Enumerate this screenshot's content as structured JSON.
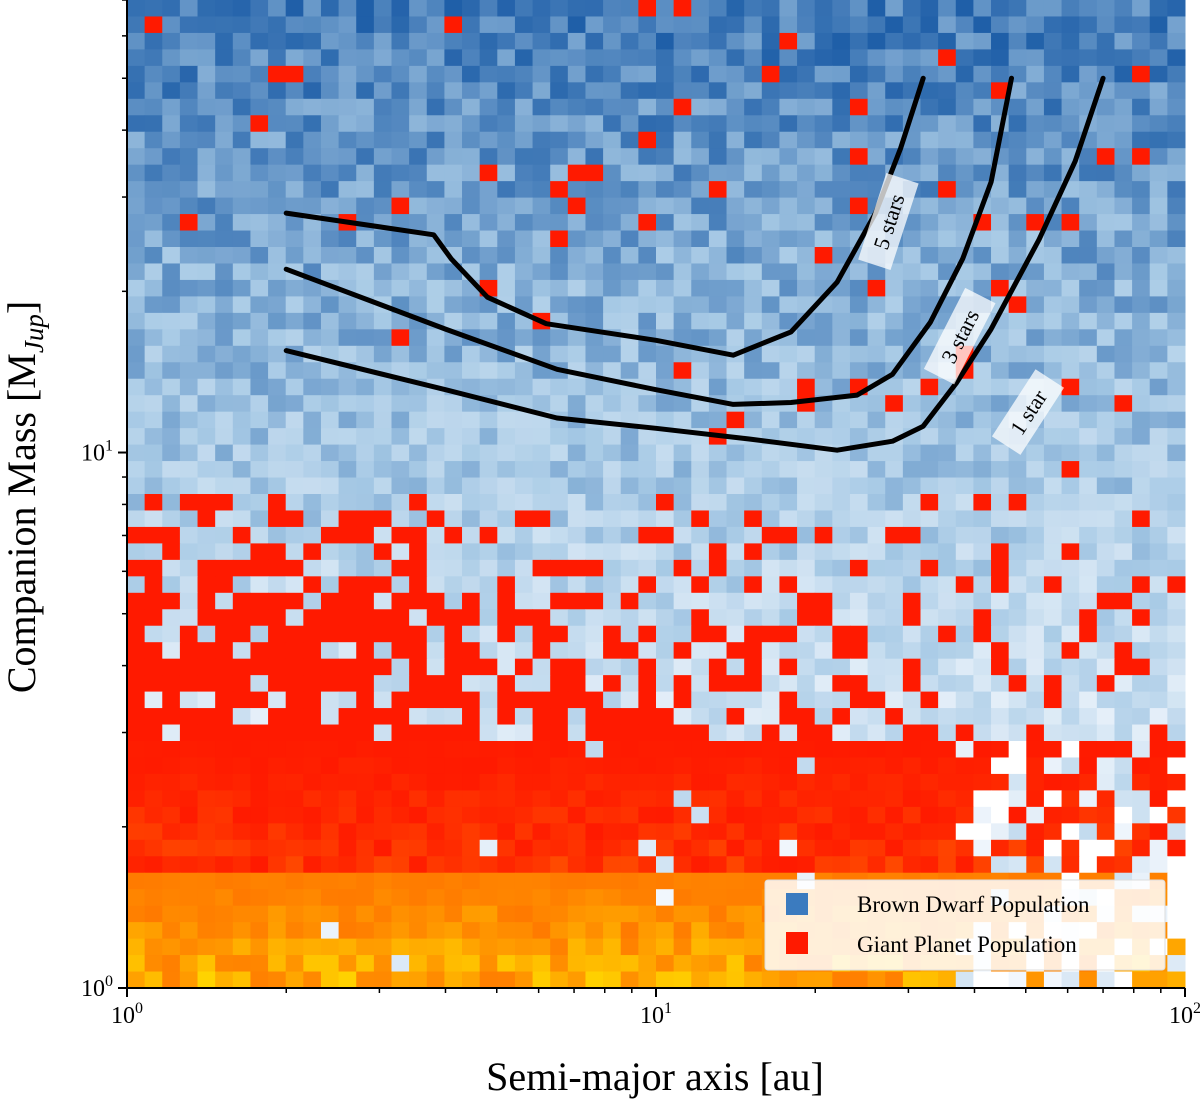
{
  "chart_data": {
    "type": "heatmap",
    "xlabel": "Semi-major axis [au]",
    "ylabel_main": "Companion Mass [M",
    "ylabel_sub": "Jup",
    "ylabel_close": "]",
    "x_scale": "log",
    "y_scale": "log",
    "xlim": [
      1,
      100
    ],
    "ylim": [
      1,
      70
    ],
    "x_ticks": [
      {
        "value": 1,
        "base": "10",
        "exp": "0"
      },
      {
        "value": 10,
        "base": "10",
        "exp": "1"
      },
      {
        "value": 100,
        "base": "10",
        "exp": "2"
      }
    ],
    "y_ticks": [
      {
        "value": 1,
        "base": "10",
        "exp": "0"
      },
      {
        "value": 10,
        "base": "10",
        "exp": "1"
      }
    ],
    "grid": false,
    "legend_placement": "bottom-right",
    "legend": [
      {
        "label": "Brown Dwarf Population",
        "color": "#3b7bbf"
      },
      {
        "label": "Giant Planet Population",
        "color": "#ff1a00"
      }
    ],
    "heatmap_grid": {
      "x_bins": 60,
      "y_bins": 60
    },
    "colors": {
      "bd_light": "#f2f7fd",
      "bd_mid": "#a9cbe6",
      "bd_dark": "#1f5fa8",
      "gp_red": "#ff1a00",
      "gp_orange": "#ff7a00",
      "gp_yellow": "#ffe000",
      "curve": "#000000"
    },
    "series": [
      {
        "name": "5 stars",
        "points": [
          [
            2.0,
            28
          ],
          [
            3.8,
            25.5
          ],
          [
            4.1,
            23
          ],
          [
            4.8,
            19.5
          ],
          [
            6.2,
            17.4
          ],
          [
            10.0,
            16.2
          ],
          [
            14.0,
            15.2
          ],
          [
            18.0,
            16.8
          ],
          [
            22.0,
            20.8
          ],
          [
            26.0,
            28
          ],
          [
            29.0,
            37
          ],
          [
            32.0,
            50
          ]
        ]
      },
      {
        "name": "3 stars",
        "points": [
          [
            2.0,
            22
          ],
          [
            4.0,
            17.0
          ],
          [
            6.5,
            14.3
          ],
          [
            10.0,
            13.1
          ],
          [
            14.0,
            12.3
          ],
          [
            18.0,
            12.4
          ],
          [
            24.0,
            12.8
          ],
          [
            28.0,
            14.0
          ],
          [
            33.0,
            17.5
          ],
          [
            38.0,
            23
          ],
          [
            43.0,
            32
          ],
          [
            47.0,
            50
          ]
        ]
      },
      {
        "name": "1 star",
        "points": [
          [
            2.0,
            15.5
          ],
          [
            4.0,
            13.1
          ],
          [
            6.5,
            11.6
          ],
          [
            10.0,
            11.1
          ],
          [
            15.0,
            10.6
          ],
          [
            22.0,
            10.1
          ],
          [
            28.0,
            10.5
          ],
          [
            32.0,
            11.2
          ],
          [
            37.0,
            13.5
          ],
          [
            43.0,
            17.0
          ],
          [
            53.0,
            25
          ],
          [
            62.0,
            35
          ],
          [
            70.0,
            50
          ]
        ]
      }
    ],
    "annotations": [
      {
        "text": "5 stars",
        "x": 27.5,
        "y": 27,
        "angle": -72
      },
      {
        "text": "3 stars",
        "x": 37.5,
        "y": 16.5,
        "angle": -63
      },
      {
        "text": "1 star",
        "x": 50.5,
        "y": 11.9,
        "angle": -57
      }
    ]
  }
}
